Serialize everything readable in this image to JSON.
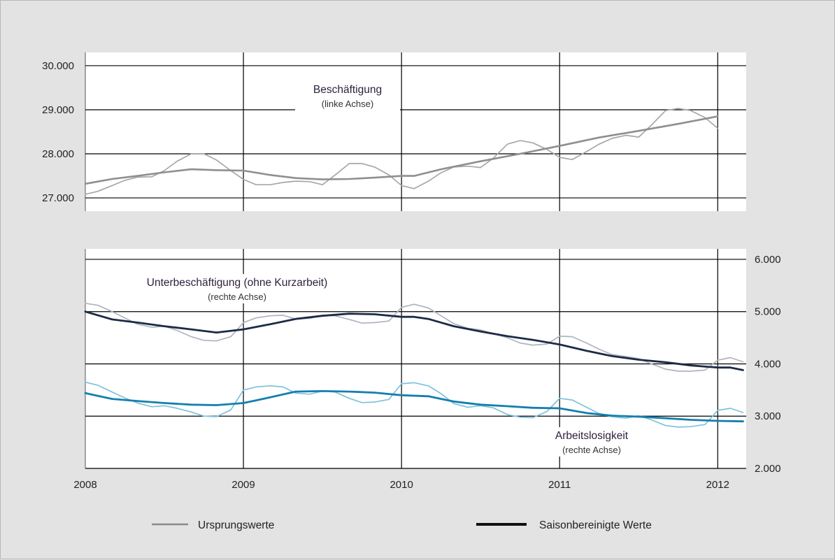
{
  "colors": {
    "background": "#e3e3e3",
    "plot_background": "#ffffff",
    "grid": "#000000",
    "raw_gray": "#a7a7a7",
    "raw_gray_dark": "#8a8a8a",
    "sa_gray": "#8f8f8f",
    "underemp_sa": "#1d2b45",
    "underemp_raw": "#aeb4c0",
    "unemp_sa": "#157fae",
    "unemp_raw": "#7ec2dc"
  },
  "legend": {
    "raw_label": "Ursprungswerte",
    "sa_label": "Saisonbereinigte Werte"
  },
  "chart_data": [
    {
      "type": "line",
      "panel": "top",
      "axis_side": "left",
      "ylim": [
        26700,
        30300
      ],
      "yticks": [
        "30.000",
        "29.000",
        "28.000",
        "27.000"
      ],
      "ytick_values": [
        30000,
        29000,
        28000,
        27000
      ],
      "xlim": [
        2008,
        2012.18
      ],
      "grid": true,
      "annotation": {
        "title": "Beschäftigung",
        "subtitle": "(linke Achse)"
      },
      "series": [
        {
          "kind": "raw",
          "x": [
            2008,
            2008.08,
            2008.17,
            2008.25,
            2008.33,
            2008.42,
            2008.5,
            2008.58,
            2008.67,
            2008.75,
            2008.83,
            2008.92,
            2009,
            2009.08,
            2009.17,
            2009.25,
            2009.33,
            2009.42,
            2009.5,
            2009.58,
            2009.67,
            2009.75,
            2009.83,
            2009.92,
            2010,
            2010.08,
            2010.17,
            2010.25,
            2010.33,
            2010.42,
            2010.5,
            2010.58,
            2010.67,
            2010.75,
            2010.83,
            2010.92,
            2011,
            2011.08,
            2011.17,
            2011.25,
            2011.33,
            2011.42,
            2011.5,
            2011.58,
            2011.67,
            2011.75,
            2011.83,
            2011.92,
            2012
          ],
          "values": [
            27080,
            27150,
            27280,
            27400,
            27470,
            27480,
            27620,
            27830,
            28000,
            28000,
            27860,
            27620,
            27420,
            27300,
            27300,
            27350,
            27380,
            27370,
            27300,
            27520,
            27780,
            27780,
            27700,
            27520,
            27280,
            27210,
            27380,
            27570,
            27700,
            27720,
            27690,
            27900,
            28220,
            28300,
            28250,
            28100,
            27920,
            27870,
            28050,
            28220,
            28350,
            28420,
            28380,
            28650,
            28980,
            29030,
            28980,
            28820,
            28580
          ]
        },
        {
          "kind": "seasonally_adjusted",
          "x": [
            2008,
            2008.17,
            2008.33,
            2008.5,
            2008.67,
            2008.83,
            2009,
            2009.17,
            2009.33,
            2009.5,
            2009.67,
            2009.83,
            2010,
            2010.08,
            2010.25,
            2010.5,
            2010.75,
            2011,
            2011.25,
            2011.5,
            2011.75,
            2012
          ],
          "values": [
            27320,
            27430,
            27500,
            27580,
            27650,
            27630,
            27620,
            27520,
            27450,
            27420,
            27430,
            27460,
            27500,
            27500,
            27650,
            27830,
            28000,
            28180,
            28370,
            28520,
            28680,
            28850
          ]
        }
      ]
    },
    {
      "type": "line",
      "panel": "bottom",
      "axis_side": "right",
      "ylim": [
        2000,
        6200
      ],
      "yticks": [
        "6.000",
        "5.000",
        "4.000",
        "3.000",
        "2.000"
      ],
      "ytick_values": [
        6000,
        5000,
        4000,
        3000,
        2000
      ],
      "xlim": [
        2008,
        2012.18
      ],
      "xticks": [
        "2008",
        "2009",
        "2010",
        "2011",
        "2012"
      ],
      "grid": true,
      "annotations": [
        {
          "title": "Unterbeschäftigung (ohne Kurzarbeit)",
          "subtitle": "(rechte Achse)"
        },
        {
          "title": "Arbeitslosigkeit",
          "subtitle": "(rechte Achse)"
        }
      ],
      "series": [
        {
          "group": "Unterbeschäftigung",
          "kind": "raw",
          "x": [
            2008,
            2008.08,
            2008.17,
            2008.25,
            2008.33,
            2008.42,
            2008.5,
            2008.58,
            2008.67,
            2008.75,
            2008.83,
            2008.92,
            2009,
            2009.08,
            2009.17,
            2009.25,
            2009.33,
            2009.42,
            2009.5,
            2009.58,
            2009.67,
            2009.75,
            2009.83,
            2009.92,
            2010,
            2010.08,
            2010.17,
            2010.25,
            2010.33,
            2010.42,
            2010.5,
            2010.58,
            2010.67,
            2010.75,
            2010.83,
            2010.92,
            2011,
            2011.08,
            2011.17,
            2011.25,
            2011.33,
            2011.42,
            2011.5,
            2011.58,
            2011.67,
            2011.75,
            2011.83,
            2011.92,
            2012,
            2012.08,
            2012.16
          ],
          "values": [
            5160,
            5120,
            5000,
            4880,
            4760,
            4700,
            4720,
            4640,
            4520,
            4450,
            4440,
            4520,
            4790,
            4880,
            4920,
            4930,
            4860,
            4870,
            4930,
            4920,
            4850,
            4780,
            4790,
            4820,
            5080,
            5140,
            5070,
            4920,
            4770,
            4680,
            4650,
            4580,
            4500,
            4400,
            4360,
            4380,
            4530,
            4520,
            4400,
            4280,
            4180,
            4140,
            4100,
            4000,
            3900,
            3860,
            3860,
            3880,
            4070,
            4120,
            4040
          ]
        },
        {
          "group": "Unterbeschäftigung",
          "kind": "seasonally_adjusted",
          "x": [
            2008,
            2008.17,
            2008.33,
            2008.5,
            2008.67,
            2008.83,
            2009,
            2009.17,
            2009.33,
            2009.5,
            2009.67,
            2009.83,
            2010,
            2010.08,
            2010.17,
            2010.33,
            2010.5,
            2010.67,
            2010.83,
            2011,
            2011.17,
            2011.33,
            2011.5,
            2011.67,
            2011.83,
            2012,
            2012.08,
            2012.16
          ],
          "values": [
            5000,
            4850,
            4790,
            4720,
            4660,
            4600,
            4660,
            4760,
            4860,
            4920,
            4960,
            4950,
            4900,
            4900,
            4860,
            4720,
            4620,
            4530,
            4460,
            4370,
            4250,
            4150,
            4080,
            4030,
            3970,
            3930,
            3930,
            3880
          ]
        },
        {
          "group": "Arbeitslosigkeit",
          "kind": "raw",
          "x": [
            2008,
            2008.08,
            2008.17,
            2008.25,
            2008.33,
            2008.42,
            2008.5,
            2008.58,
            2008.67,
            2008.75,
            2008.83,
            2008.92,
            2009,
            2009.08,
            2009.17,
            2009.25,
            2009.33,
            2009.42,
            2009.5,
            2009.58,
            2009.67,
            2009.75,
            2009.83,
            2009.92,
            2010,
            2010.08,
            2010.17,
            2010.25,
            2010.33,
            2010.42,
            2010.5,
            2010.58,
            2010.67,
            2010.75,
            2010.83,
            2010.92,
            2011,
            2011.08,
            2011.17,
            2011.25,
            2011.33,
            2011.42,
            2011.5,
            2011.58,
            2011.67,
            2011.75,
            2011.83,
            2011.92,
            2012,
            2012.08,
            2012.16
          ],
          "values": [
            3650,
            3590,
            3460,
            3350,
            3250,
            3180,
            3200,
            3150,
            3080,
            3000,
            2990,
            3120,
            3500,
            3560,
            3580,
            3560,
            3440,
            3420,
            3480,
            3460,
            3340,
            3260,
            3270,
            3320,
            3620,
            3640,
            3580,
            3430,
            3240,
            3170,
            3200,
            3160,
            3030,
            2980,
            2970,
            3090,
            3340,
            3310,
            3170,
            3050,
            2990,
            2960,
            3010,
            2930,
            2820,
            2790,
            2800,
            2840,
            3110,
            3150,
            3070
          ]
        },
        {
          "group": "Arbeitslosigkeit",
          "kind": "seasonally_adjusted",
          "x": [
            2008,
            2008.17,
            2008.33,
            2008.5,
            2008.67,
            2008.83,
            2009,
            2009.17,
            2009.33,
            2009.5,
            2009.67,
            2009.83,
            2010,
            2010.17,
            2010.33,
            2010.5,
            2010.67,
            2010.83,
            2011,
            2011.17,
            2011.33,
            2011.5,
            2011.67,
            2011.83,
            2012,
            2012.16
          ],
          "values": [
            3440,
            3330,
            3290,
            3250,
            3220,
            3210,
            3250,
            3360,
            3470,
            3480,
            3470,
            3450,
            3400,
            3380,
            3280,
            3220,
            3190,
            3160,
            3150,
            3060,
            3010,
            2990,
            2960,
            2930,
            2910,
            2900
          ]
        }
      ]
    }
  ]
}
